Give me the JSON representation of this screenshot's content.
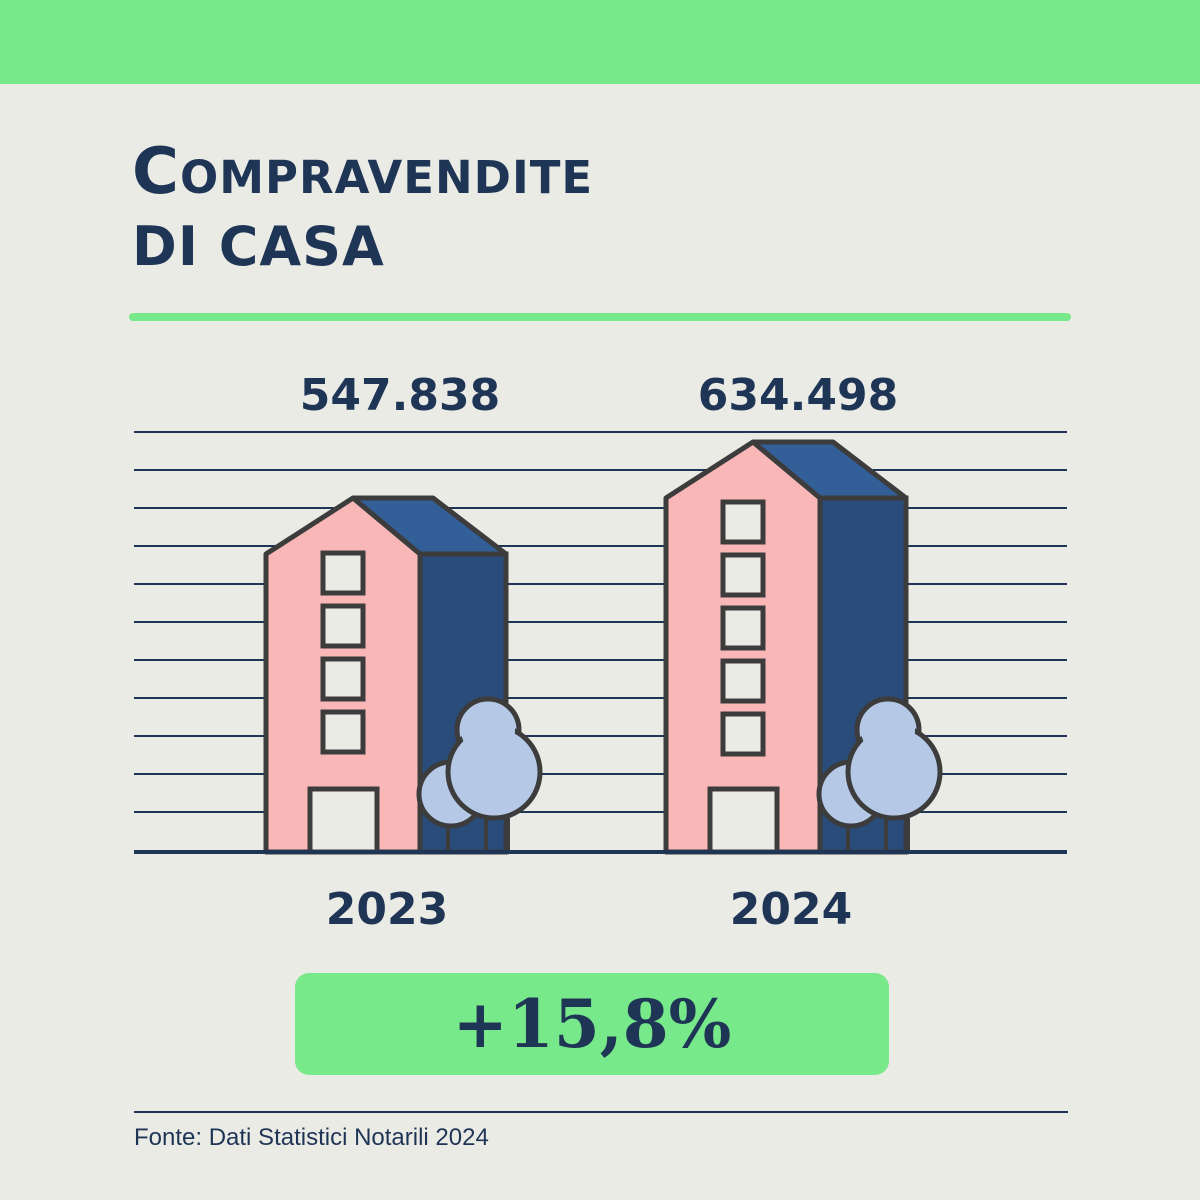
{
  "title": {
    "line1": "Compravendite",
    "line2": "di casa"
  },
  "chart_data": {
    "type": "bar",
    "categories": [
      "2023",
      "2024"
    ],
    "values": [
      547838,
      634498
    ],
    "value_labels": [
      "547.838",
      "634.498"
    ],
    "grid": true,
    "change_label": "+15,8%"
  },
  "source": "Fonte: Dati Statistici Notarili 2024",
  "colors": {
    "accent": "#77E98B",
    "navy": "#1F3556",
    "background": "#EBEBE6",
    "building_front": "#F9B7B8",
    "building_side": "#294C7A",
    "building_roof": "#335F99",
    "tree": "#B5C9E6",
    "window": "#EBEBE6",
    "outline": "#3C3C3C"
  }
}
